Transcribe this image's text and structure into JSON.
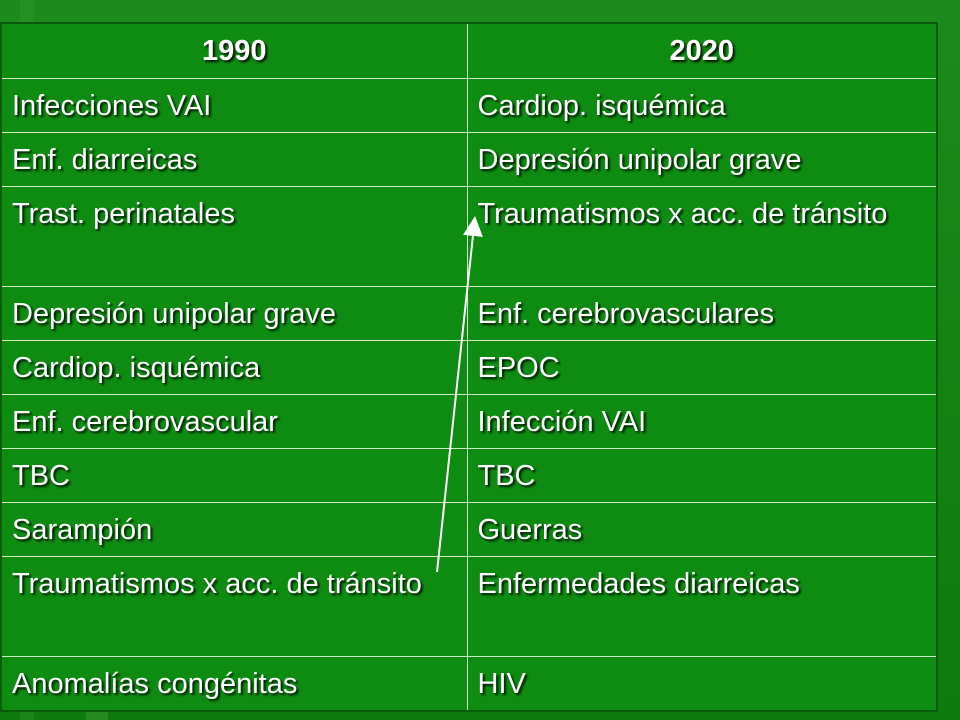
{
  "table": {
    "headers": [
      "1990",
      "2020"
    ],
    "rows": [
      [
        "Infecciones VAI",
        "Cardiop. isquémica"
      ],
      [
        "Enf. diarreicas",
        "Depresión unipolar grave"
      ],
      [
        "Trast. perinatales",
        "Traumatismos x acc. de tránsito"
      ],
      [
        "Depresión unipolar grave",
        "Enf. cerebrovasculares"
      ],
      [
        "Cardiop. isquémica",
        "EPOC"
      ],
      [
        "Enf. cerebrovascular",
        "Infección VAI"
      ],
      [
        "TBC",
        "TBC"
      ],
      [
        "Sarampión",
        "Guerras"
      ],
      [
        "Traumatismos x acc. de tránsito",
        "Enfermedades diarreicas"
      ],
      [
        "Anomalías congénitas",
        "HIV"
      ]
    ]
  },
  "colors": {
    "background": "#138213",
    "cell": "#0e8c12",
    "text": "#ffffff",
    "border": "#cfe8c8"
  }
}
